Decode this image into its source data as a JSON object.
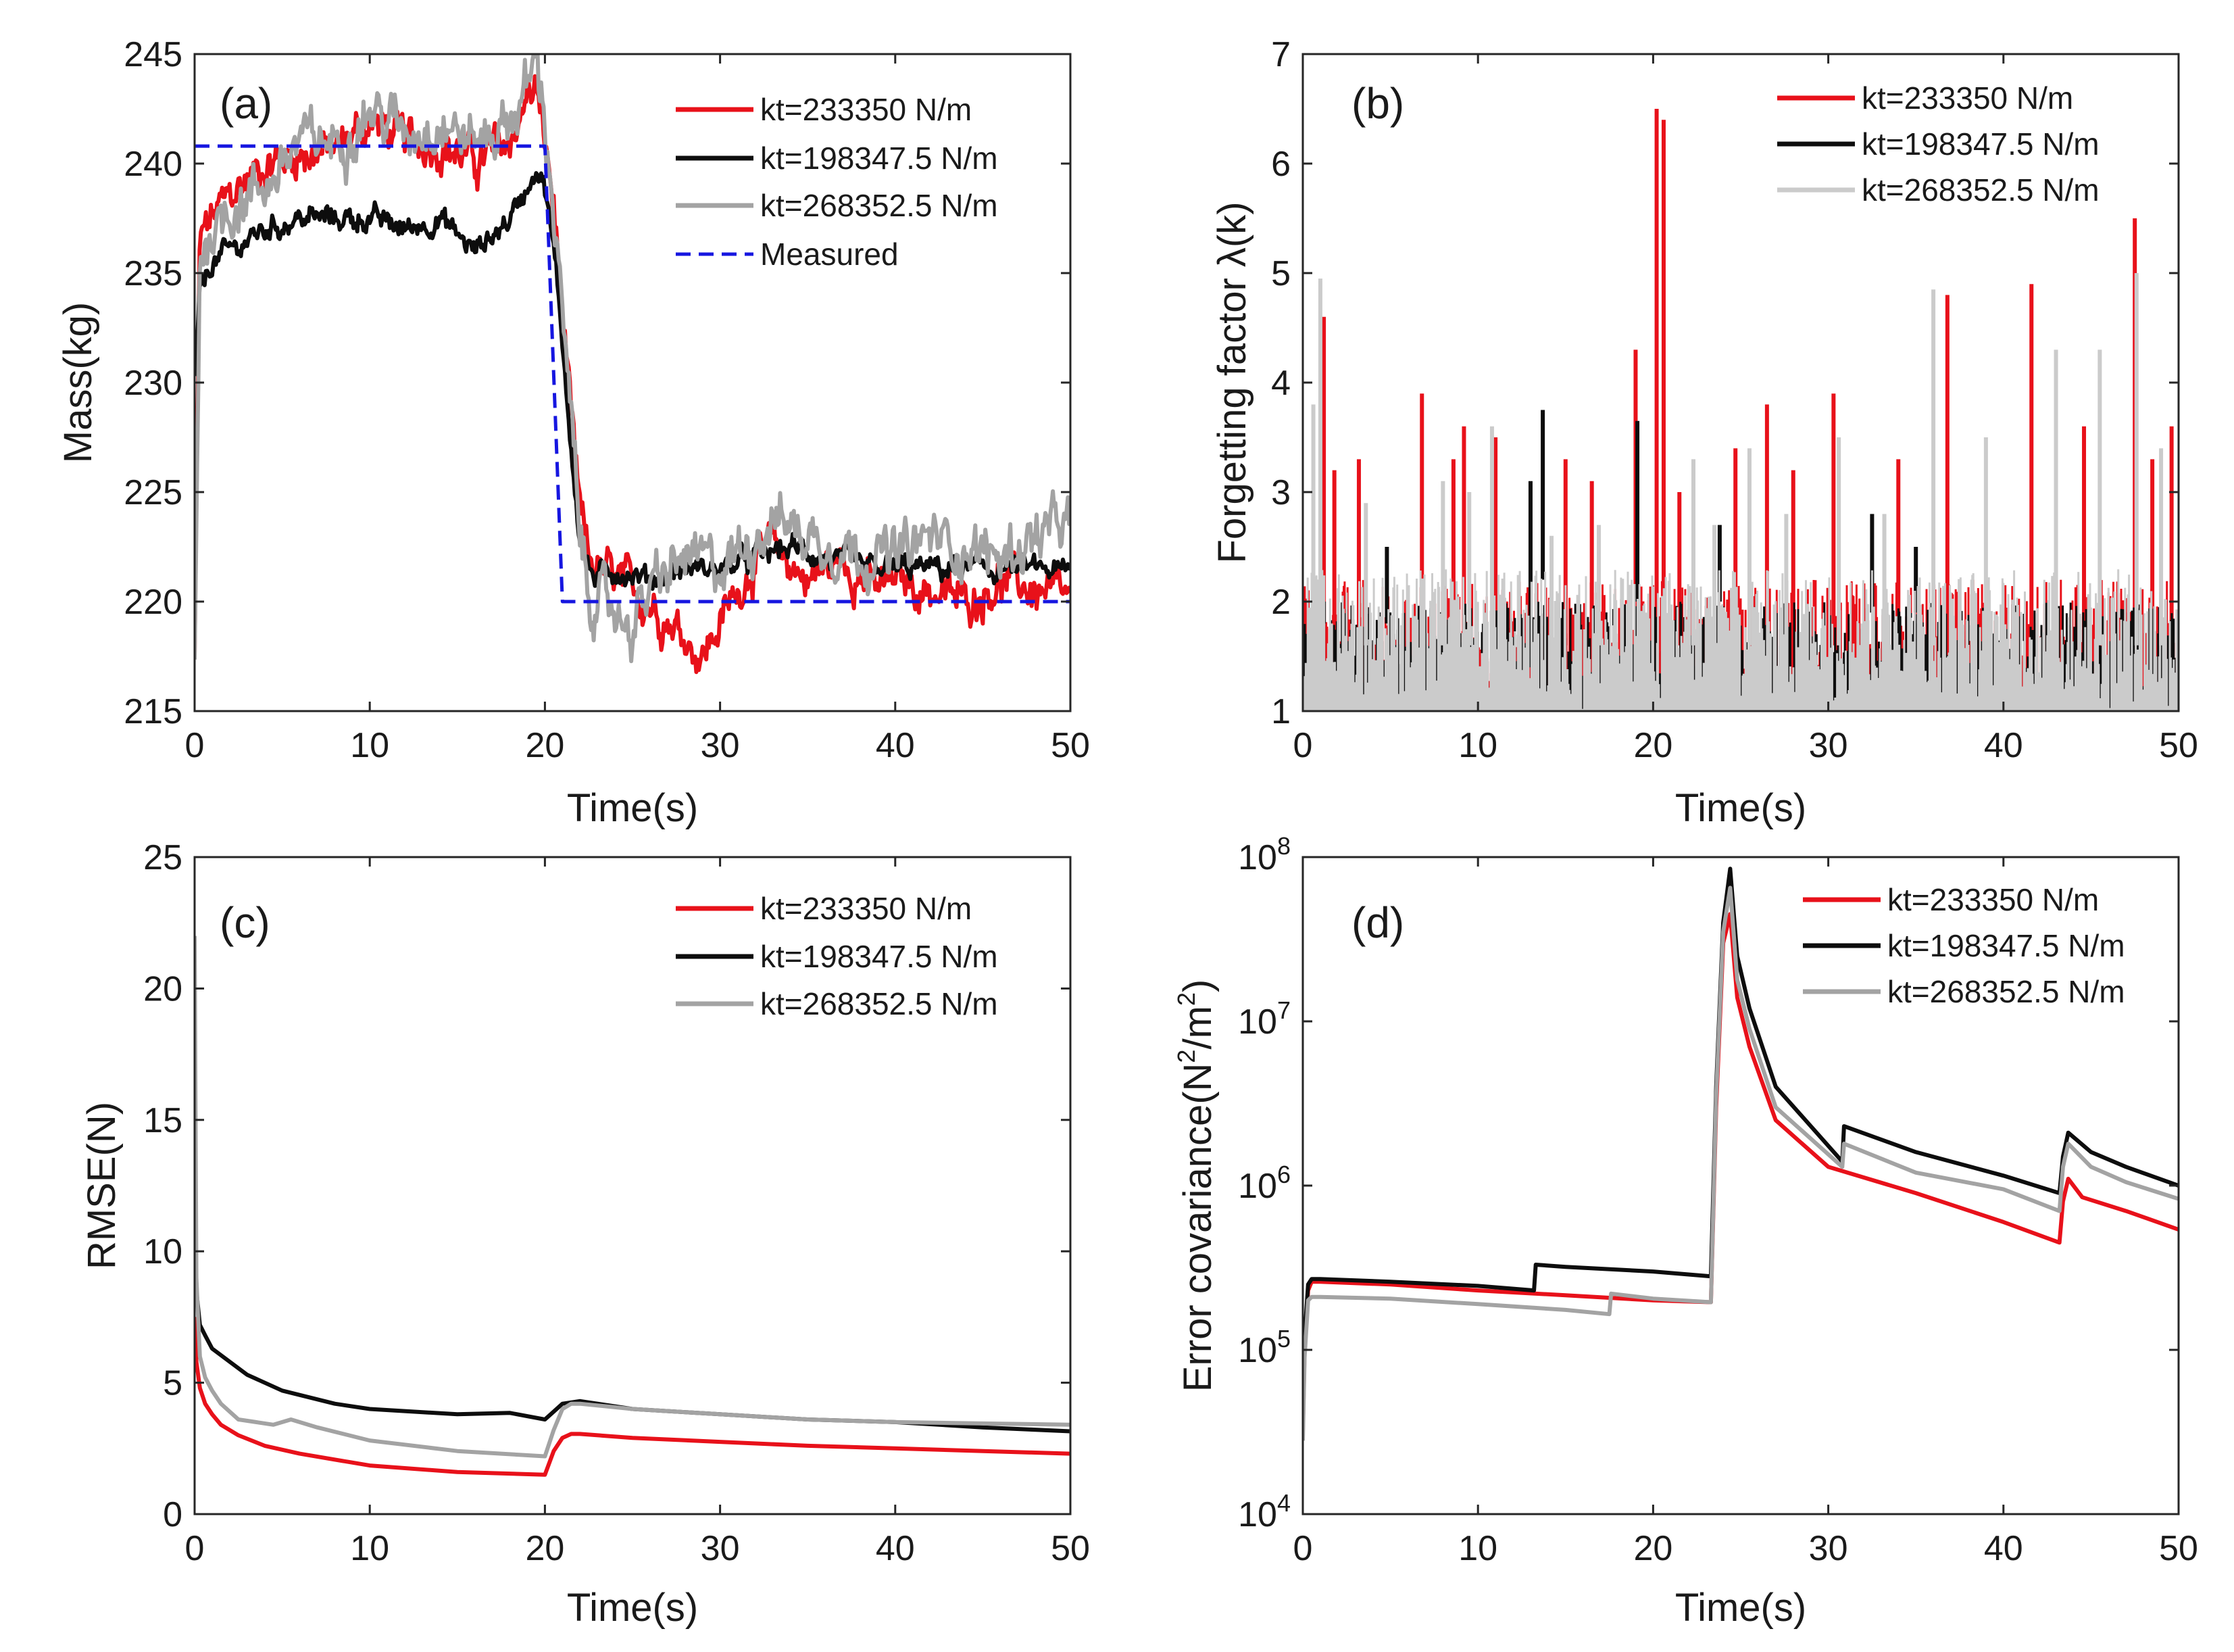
{
  "figure_title": "",
  "colors": {
    "red": "#e8111a",
    "black": "#0d0d0d",
    "gray": "#a3a3a3",
    "light_gray": "#cbcbcb",
    "blue": "#1616e0",
    "axis": "#262626",
    "background": "#ffffff"
  },
  "chart_data": [
    {
      "id": "a",
      "panel_label": "(a)",
      "type": "line",
      "xlabel": "Time(s)",
      "ylabel": "Mass(kg)",
      "xlim": [
        0,
        50
      ],
      "ylim": [
        215,
        245
      ],
      "xticks": [
        0,
        10,
        20,
        30,
        40,
        50
      ],
      "yticks": [
        215,
        220,
        225,
        230,
        235,
        240,
        245
      ],
      "xtick_labels": [
        "0",
        "10",
        "20",
        "30",
        "40",
        "50"
      ],
      "ytick_labels": [
        "215",
        "220",
        "225",
        "230",
        "235",
        "240",
        "245"
      ],
      "legend_position": "top-right",
      "series": [
        {
          "name": "kt=233350 N/m",
          "color": "red",
          "style": "solid",
          "noise": 0.9,
          "x": [
            0,
            0.3,
            1,
            2,
            4,
            6,
            8,
            10,
            12,
            14,
            16,
            18,
            19,
            19.5,
            20,
            20.5,
            21,
            21.5,
            22,
            22.5,
            23,
            24,
            26,
            28,
            29,
            30,
            32,
            33,
            35,
            37,
            39,
            40,
            42,
            44,
            46,
            48,
            50
          ],
          "y": [
            217.5,
            236.5,
            237.5,
            238.5,
            240,
            240.5,
            240.5,
            242,
            241,
            241,
            240,
            241,
            243,
            243.5,
            241,
            238,
            233,
            228,
            224,
            222,
            221.5,
            221,
            220,
            218.5,
            217.5,
            219,
            222,
            222.5,
            221,
            222,
            220.5,
            221,
            220.5,
            220,
            221,
            220.5,
            220
          ]
        },
        {
          "name": "kt=198347.5 N/m",
          "color": "black",
          "style": "solid",
          "noise": 0.5,
          "x": [
            0,
            0.3,
            1,
            2,
            4,
            6,
            8,
            10,
            12,
            14,
            16,
            18,
            19,
            19.5,
            20,
            20.5,
            21,
            21.5,
            22,
            22.5,
            23,
            24,
            26,
            28,
            30,
            32,
            34,
            36,
            38,
            40,
            42,
            44,
            46,
            48,
            50
          ],
          "y": [
            230,
            234,
            235.5,
            236,
            237,
            237.5,
            237.5,
            237.5,
            237,
            237.5,
            236,
            237.5,
            239,
            240,
            239,
            236,
            232,
            227,
            223,
            221.5,
            221,
            221.5,
            221,
            221.5,
            221.5,
            222,
            222.5,
            222,
            221.5,
            221.5,
            221.5,
            221.5,
            221.5,
            221.5,
            221.3
          ]
        },
        {
          "name": "kt=268352.5 N/m",
          "color": "gray",
          "style": "solid",
          "noise": 1.1,
          "x": [
            0,
            0.3,
            1,
            2,
            4,
            6,
            8,
            10,
            12,
            14,
            16,
            18,
            19,
            19.5,
            20,
            20.5,
            21,
            21.5,
            22,
            22.5,
            23,
            24,
            25,
            26,
            28,
            30,
            32,
            33,
            35,
            37,
            40,
            42,
            44,
            46,
            48,
            50
          ],
          "y": [
            217.5,
            236,
            237,
            238,
            239,
            241,
            241,
            242.5,
            241.5,
            242,
            241,
            242,
            243.5,
            245,
            242,
            238,
            233,
            228,
            223,
            220.5,
            220,
            219.5,
            219,
            220.5,
            222,
            221.5,
            223,
            224,
            223,
            222.5,
            222,
            223,
            222.5,
            222,
            223,
            223.5
          ]
        },
        {
          "name": "Measured",
          "color": "blue",
          "style": "dashed",
          "noise": 0,
          "x": [
            0,
            20,
            21,
            50
          ],
          "y": [
            240.8,
            240.8,
            220,
            220
          ]
        }
      ]
    },
    {
      "id": "b",
      "panel_label": "(b)",
      "type": "line",
      "xlabel": "Time(s)",
      "ylabel": "Forgetting factor λ(k)",
      "xlim": [
        0,
        50
      ],
      "ylim": [
        1,
        7
      ],
      "xticks": [
        0,
        10,
        20,
        30,
        40,
        50
      ],
      "yticks": [
        1,
        2,
        3,
        4,
        5,
        6,
        7
      ],
      "xtick_labels": [
        "0",
        "10",
        "20",
        "30",
        "40",
        "50"
      ],
      "ytick_labels": [
        "1",
        "2",
        "3",
        "4",
        "5",
        "6",
        "7"
      ],
      "legend_position": "top-right",
      "series": [
        {
          "name": "kt=233350 N/m",
          "color": "red",
          "baseline_max": 2.2,
          "spike_x": [
            1.2,
            1.8,
            3.2,
            6.8,
            8.6,
            9.2,
            11.0,
            15.0,
            16.5,
            19.0,
            20.2,
            20.6,
            21.5,
            24.7,
            26.5,
            28.0,
            30.3,
            34.0,
            36.8,
            41.6,
            44.6,
            47.5,
            48.5,
            49.6
          ],
          "spike_y": [
            4.6,
            3.2,
            3.3,
            3.9,
            3.3,
            3.6,
            3.5,
            3.3,
            3.1,
            4.3,
            6.5,
            6.4,
            3.0,
            3.4,
            3.8,
            3.2,
            3.9,
            3.3,
            4.8,
            4.9,
            3.6,
            5.5,
            3.3,
            3.6
          ]
        },
        {
          "name": "kt=198347.5 N/m",
          "color": "black",
          "baseline_max": 2.0,
          "spike_x": [
            1.2,
            4.8,
            13.0,
            13.7,
            19.1,
            23.8,
            32.5,
            35.0
          ],
          "spike_y": [
            2.0,
            2.5,
            3.1,
            3.75,
            3.65,
            2.7,
            2.8,
            2.5
          ],
          "spike_floor": [
            1.8,
            1.8,
            1.4,
            2.2,
            2.0,
            2.0,
            1.9,
            1.9
          ]
        },
        {
          "name": "kt=268352.5 N/m",
          "color": "light_gray",
          "baseline_max": 2.3,
          "spike_x": [
            0.6,
            1.0,
            3.6,
            8.0,
            9.5,
            10.8,
            14.2,
            16.9,
            22.3,
            23.5,
            25.5,
            27.6,
            30.6,
            33.2,
            36.0,
            39.0,
            43.0,
            45.5,
            47.6,
            49.0
          ],
          "spike_y": [
            3.8,
            4.95,
            2.9,
            3.1,
            3.0,
            3.6,
            2.6,
            2.7,
            3.3,
            2.7,
            3.4,
            2.8,
            3.5,
            2.8,
            4.85,
            3.5,
            4.3,
            4.3,
            5.0,
            3.4
          ]
        }
      ]
    },
    {
      "id": "c",
      "panel_label": "(c)",
      "type": "line",
      "xlabel": "Time(s)",
      "ylabel": "RMSE(N)",
      "xlim": [
        0,
        50
      ],
      "ylim": [
        0,
        25
      ],
      "xticks": [
        0,
        10,
        20,
        30,
        40,
        50
      ],
      "yticks": [
        0,
        5,
        10,
        15,
        20,
        25
      ],
      "xtick_labels": [
        "0",
        "10",
        "20",
        "30",
        "40",
        "50"
      ],
      "ytick_labels": [
        "0",
        "5",
        "10",
        "15",
        "20",
        "25"
      ],
      "legend_position": "top-right",
      "series": [
        {
          "name": "kt=233350 N/m",
          "color": "red",
          "style": "solid",
          "x": [
            0,
            0.1,
            0.3,
            0.6,
            1,
            1.5,
            2.5,
            4,
            6,
            10,
            15,
            20,
            20.5,
            21,
            21.5,
            22,
            25,
            30,
            35,
            40,
            45,
            50
          ],
          "y": [
            7.5,
            5.8,
            4.8,
            4.2,
            3.8,
            3.4,
            3.0,
            2.6,
            2.3,
            1.85,
            1.6,
            1.5,
            2.4,
            2.9,
            3.05,
            3.05,
            2.9,
            2.75,
            2.6,
            2.5,
            2.4,
            2.3
          ]
        },
        {
          "name": "kt=198347.5 N/m",
          "color": "black",
          "style": "solid",
          "x": [
            0,
            0.1,
            0.3,
            0.6,
            1,
            2,
            3,
            5,
            8,
            10,
            15,
            18,
            20,
            20.5,
            21,
            22,
            25,
            30,
            35,
            40,
            45,
            50
          ],
          "y": [
            11.5,
            8.5,
            7.2,
            6.8,
            6.3,
            5.8,
            5.3,
            4.7,
            4.2,
            4.0,
            3.8,
            3.85,
            3.6,
            3.9,
            4.2,
            4.3,
            4.0,
            3.8,
            3.6,
            3.5,
            3.3,
            3.15
          ]
        },
        {
          "name": "kt=268352.5 N/m",
          "color": "gray",
          "style": "solid",
          "x": [
            0,
            0.1,
            0.3,
            0.6,
            1,
            1.5,
            2.5,
            3.5,
            4.5,
            5.5,
            7,
            10,
            15,
            20,
            20.5,
            21,
            21.5,
            22,
            25,
            30,
            35,
            40,
            45,
            50
          ],
          "y": [
            22,
            9,
            6.0,
            5.2,
            4.7,
            4.2,
            3.6,
            3.5,
            3.4,
            3.6,
            3.3,
            2.8,
            2.4,
            2.2,
            3.2,
            4.0,
            4.2,
            4.2,
            4.0,
            3.8,
            3.6,
            3.5,
            3.45,
            3.4
          ]
        }
      ]
    },
    {
      "id": "d",
      "panel_label": "(d)",
      "type": "line",
      "xlabel": "Time(s)",
      "ylabel": "Error covariance(N",
      "ylabel_sup1": "2",
      "ylabel_mid": "/m",
      "ylabel_sup2": "2",
      "ylabel_end": ")",
      "yscale": "log",
      "xlim": [
        0,
        50
      ],
      "ylim": [
        10000,
        100000000
      ],
      "xticks": [
        0,
        10,
        20,
        30,
        40,
        50
      ],
      "yticks": [
        10000,
        100000,
        1000000,
        10000000,
        100000000
      ],
      "xtick_labels": [
        "0",
        "10",
        "20",
        "30",
        "40",
        "50"
      ],
      "ytick_base": "10",
      "ytick_exponents": [
        "4",
        "5",
        "6",
        "7",
        "8"
      ],
      "legend_position": "top-right",
      "series": [
        {
          "name": "kt=233350 N/m",
          "color": "red",
          "style": "solid",
          "x": [
            0,
            0.1,
            0.3,
            0.5,
            1,
            5,
            10,
            15,
            20,
            23.3,
            23.6,
            24,
            24.4,
            24.8,
            25.5,
            27,
            30,
            35,
            40,
            43.2,
            43.4,
            43.7,
            44.5,
            47,
            50
          ],
          "y": [
            32000,
            100000,
            230000,
            260000,
            260000,
            250000,
            230000,
            215000,
            200000,
            195000,
            3000000,
            30000000,
            45000000,
            14000000,
            7000000,
            2500000,
            1300000,
            900000,
            600000,
            450000,
            800000,
            1100000,
            850000,
            700000,
            540000
          ]
        },
        {
          "name": "kt=198347.5 N/m",
          "color": "black",
          "style": "solid",
          "x": [
            0,
            0.1,
            0.3,
            0.5,
            1,
            5,
            10,
            13.2,
            13.3,
            15,
            20,
            23.3,
            23.6,
            24,
            24.4,
            24.8,
            25.5,
            27,
            30.8,
            30.9,
            35,
            40,
            43.2,
            43.4,
            43.7,
            45,
            47,
            50
          ],
          "y": [
            35000,
            120000,
            250000,
            270000,
            270000,
            260000,
            245000,
            230000,
            330000,
            320000,
            300000,
            280000,
            4000000,
            40000000,
            85000000,
            25000000,
            12000000,
            4000000,
            1400000,
            2300000,
            1600000,
            1150000,
            900000,
            1500000,
            2100000,
            1600000,
            1300000,
            1000000
          ]
        },
        {
          "name": "kt=268352.5 N/m",
          "color": "gray",
          "style": "solid",
          "x": [
            0,
            0.1,
            0.3,
            0.5,
            1,
            5,
            10,
            15,
            17.5,
            17.6,
            20,
            23.3,
            23.6,
            24,
            24.4,
            24.8,
            25.5,
            27,
            30.8,
            30.9,
            35,
            40,
            43.2,
            43.4,
            43.7,
            45,
            47,
            50
          ],
          "y": [
            28000,
            90000,
            200000,
            210000,
            210000,
            205000,
            190000,
            175000,
            165000,
            220000,
            205000,
            195000,
            3500000,
            35000000,
            65000000,
            18000000,
            9000000,
            3000000,
            1300000,
            1800000,
            1200000,
            950000,
            700000,
            1300000,
            1800000,
            1300000,
            1050000,
            830000
          ]
        }
      ]
    }
  ]
}
